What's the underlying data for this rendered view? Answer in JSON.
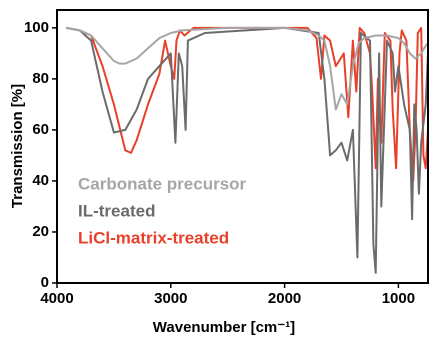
{
  "chart_data": {
    "type": "line",
    "xlabel": "Wavenumber [cm⁻¹]",
    "ylabel": "Transmission [%]",
    "xlim": [
      4000,
      740
    ],
    "xticks": [
      4000,
      3000,
      2000,
      1000
    ],
    "ylim": [
      0,
      107
    ],
    "yticks": [
      0,
      20,
      40,
      60,
      80,
      100
    ],
    "series": [
      {
        "name": "Carbonate precursor",
        "color": "#a6a6a6",
        "x": [
          3920,
          3800,
          3700,
          3600,
          3500,
          3450,
          3400,
          3300,
          3200,
          3100,
          3000,
          2900,
          2500,
          2000,
          1800,
          1700,
          1650,
          1600,
          1550,
          1500,
          1450,
          1400,
          1350,
          1300,
          1200,
          1100,
          1000,
          950,
          900,
          850,
          800,
          760,
          740
        ],
        "values": [
          100,
          99,
          97,
          92,
          87,
          86,
          86,
          88,
          92,
          96,
          98,
          99,
          100,
          100,
          99,
          97,
          95,
          85,
          68,
          74,
          70,
          85,
          94,
          96,
          97,
          97,
          96,
          94,
          90,
          88,
          90,
          93,
          94
        ]
      },
      {
        "name": "IL-treated",
        "color": "#6b6b6b",
        "x": [
          3920,
          3800,
          3700,
          3600,
          3500,
          3400,
          3300,
          3200,
          3100,
          3000,
          2960,
          2930,
          2900,
          2870,
          2850,
          2700,
          2000,
          1700,
          1650,
          1600,
          1550,
          1500,
          1450,
          1400,
          1360,
          1330,
          1250,
          1220,
          1200,
          1170,
          1150,
          1100,
          1050,
          1030,
          1000,
          950,
          900,
          880,
          860,
          840,
          820,
          800,
          760,
          740
        ],
        "values": [
          100,
          99,
          95,
          75,
          59,
          60,
          68,
          80,
          85,
          90,
          55,
          90,
          85,
          60,
          95,
          98,
          100,
          98,
          80,
          50,
          52,
          55,
          48,
          60,
          10,
          98,
          95,
          15,
          4,
          90,
          30,
          95,
          90,
          75,
          85,
          70,
          60,
          25,
          70,
          60,
          35,
          55,
          70,
          90
        ]
      },
      {
        "name": "LiCl-matrix-treated",
        "color": "#e8402a",
        "x": [
          3920,
          3800,
          3700,
          3600,
          3500,
          3400,
          3350,
          3300,
          3200,
          3100,
          3050,
          3000,
          2970,
          2950,
          2920,
          2880,
          2800,
          1800,
          1720,
          1680,
          1650,
          1600,
          1550,
          1480,
          1440,
          1400,
          1370,
          1340,
          1300,
          1250,
          1230,
          1200,
          1180,
          1150,
          1120,
          1070,
          1050,
          1020,
          990,
          970,
          930,
          900,
          870,
          850,
          830,
          800,
          780,
          760,
          740
        ],
        "values": [
          100,
          99,
          97,
          85,
          70,
          52,
          51,
          56,
          70,
          82,
          95,
          85,
          80,
          95,
          99,
          97,
          100,
          100,
          96,
          80,
          97,
          95,
          85,
          90,
          65,
          95,
          75,
          100,
          98,
          90,
          75,
          45,
          80,
          55,
          98,
          95,
          68,
          45,
          90,
          99,
          95,
          60,
          40,
          60,
          98,
          100,
          50,
          45,
          60
        ]
      }
    ]
  }
}
